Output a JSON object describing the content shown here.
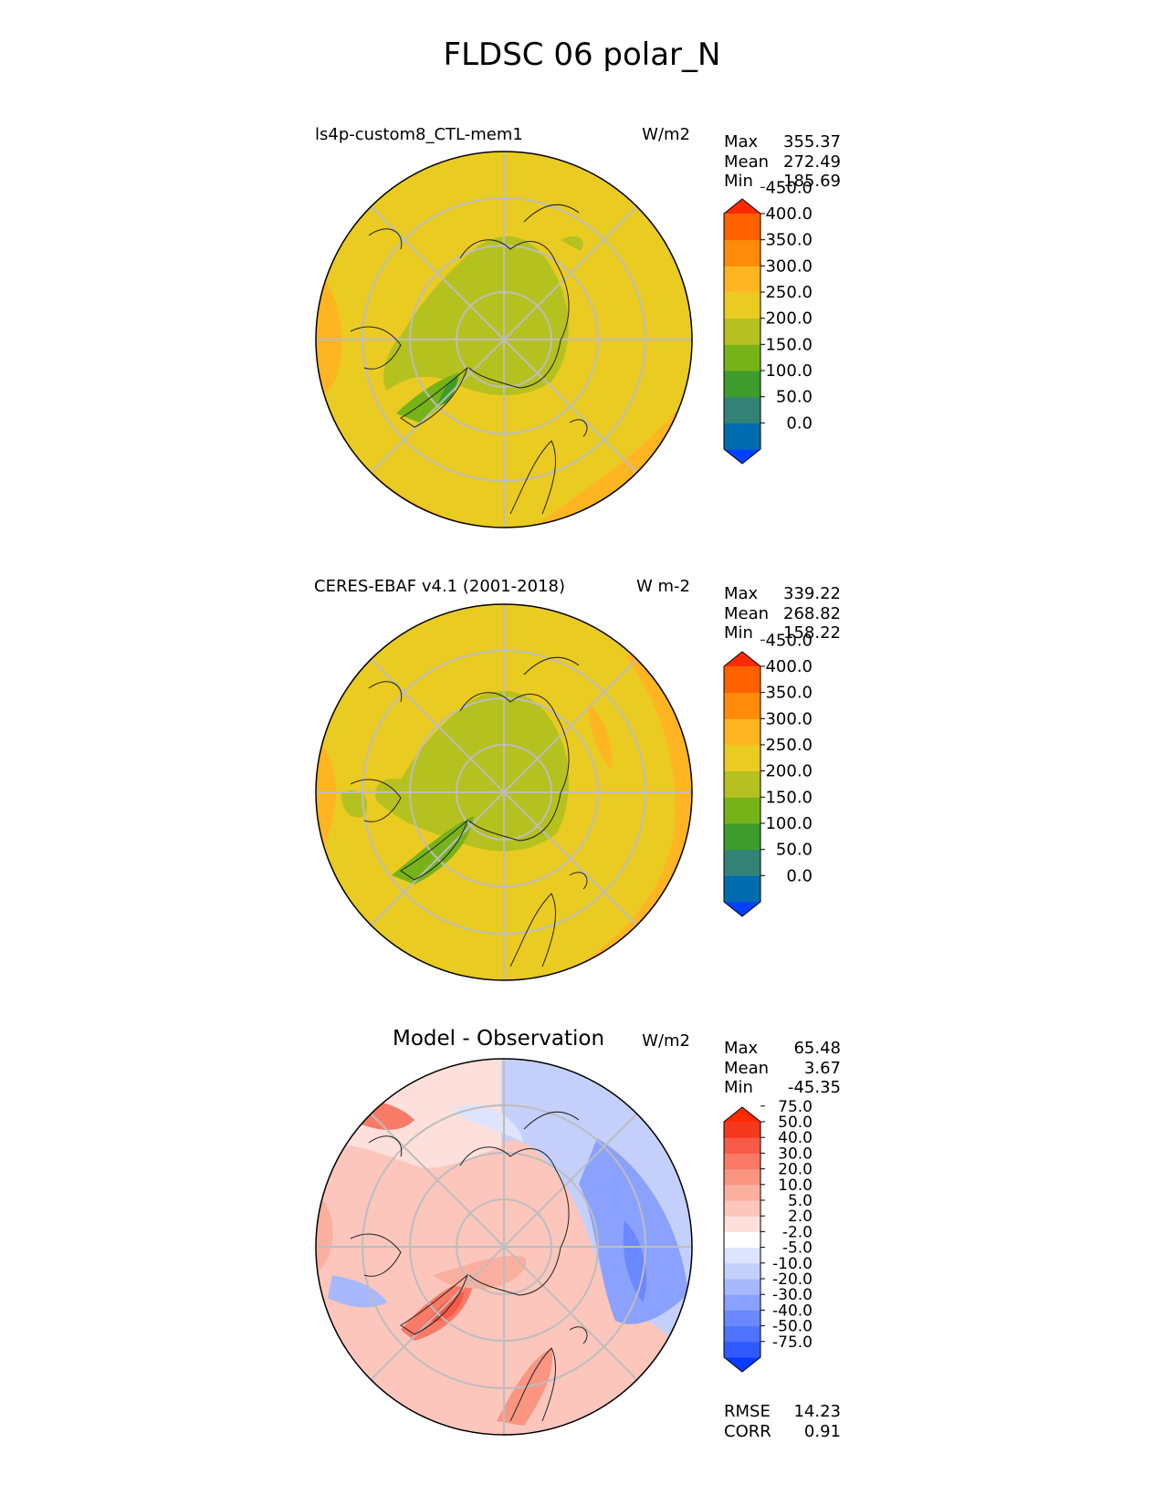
{
  "figure": {
    "title": "FLDSC 06 polar_N"
  },
  "panels": [
    {
      "id": "model",
      "title": "ls4p-custom8_CTL-mem1",
      "units": "W/m2",
      "stats": [
        {
          "label": "Max",
          "value": "355.37"
        },
        {
          "label": "Mean",
          "value": "272.49"
        },
        {
          "label": "Min",
          "value": "185.69"
        }
      ]
    },
    {
      "id": "observation",
      "title": "CERES-EBAF v4.1 (2001-2018)",
      "units": "W m-2",
      "stats": [
        {
          "label": "Max",
          "value": "339.22"
        },
        {
          "label": "Mean",
          "value": "268.82"
        },
        {
          "label": "Min",
          "value": "158.22"
        }
      ]
    },
    {
      "id": "difference",
      "title": "Model - Observation",
      "units": "W/m2",
      "stats": [
        {
          "label": "Max",
          "value": "65.48"
        },
        {
          "label": "Mean",
          "value": "3.67"
        },
        {
          "label": "Min",
          "value": "-45.35"
        }
      ],
      "metrics": [
        {
          "label": "RMSE",
          "value": "14.23"
        },
        {
          "label": "CORR",
          "value": "0.91"
        }
      ]
    }
  ],
  "colorbars": {
    "main": {
      "ticks": [
        "0.0",
        "50.0",
        "100.0",
        "150.0",
        "200.0",
        "250.0",
        "300.0",
        "350.0",
        "400.0",
        "450.0"
      ],
      "colors": [
        "#0040ff",
        "#006cb0",
        "#328376",
        "#3e9c2c",
        "#76b319",
        "#b5c11e",
        "#e9cb22",
        "#ffb521",
        "#ff8c09",
        "#ff6100",
        "#ff2a00"
      ]
    },
    "diff": {
      "ticks": [
        "-75.0",
        "-50.0",
        "-40.0",
        "-30.0",
        "-20.0",
        "-10.0",
        "-5.0",
        "-2.0",
        "2.0",
        "5.0",
        "10.0",
        "20.0",
        "30.0",
        "40.0",
        "50.0",
        "75.0"
      ],
      "colors": [
        "#0a3cff",
        "#2f5aff",
        "#4f72ff",
        "#6a88ff",
        "#8aa1ff",
        "#a8b8fc",
        "#c4d0fb",
        "#dde4fc",
        "#ffffff",
        "#fde0db",
        "#fcc6bc",
        "#fbaf9f",
        "#fa9582",
        "#f97a66",
        "#f75a46",
        "#f4391f",
        "#ff2a00"
      ]
    }
  },
  "chart_data": {
    "type": "heatmap",
    "projection": "north-polar-stereographic",
    "variable": "FLDSC",
    "month": "06",
    "region": "polar_N",
    "panels": [
      {
        "name": "ls4p-custom8_CTL-mem1",
        "units": "W/m2",
        "max": 355.37,
        "mean": 272.49,
        "min": 185.69,
        "levels": [
          0,
          50,
          100,
          150,
          200,
          250,
          300,
          350,
          400,
          450
        ]
      },
      {
        "name": "CERES-EBAF v4.1 (2001-2018)",
        "units": "W m-2",
        "max": 339.22,
        "mean": 268.82,
        "min": 158.22,
        "levels": [
          0,
          50,
          100,
          150,
          200,
          250,
          300,
          350,
          400,
          450
        ]
      },
      {
        "name": "Model - Observation",
        "units": "W/m2",
        "max": 65.48,
        "mean": 3.67,
        "min": -45.35,
        "rmse": 14.23,
        "corr": 0.91,
        "levels": [
          -75,
          -50,
          -40,
          -30,
          -20,
          -10,
          -5,
          -2,
          2,
          5,
          10,
          20,
          30,
          40,
          50,
          75
        ]
      }
    ]
  }
}
